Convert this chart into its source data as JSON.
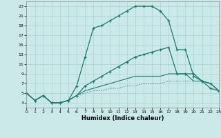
{
  "xlabel": "Humidex (Indice chaleur)",
  "ylabel": "",
  "bg_color": "#cce9ea",
  "grid_color": "#b0d4d6",
  "line_color": "#1a7a6e",
  "xlim": [
    0,
    23
  ],
  "ylim": [
    2,
    24
  ],
  "xticks": [
    0,
    1,
    2,
    3,
    4,
    5,
    6,
    7,
    8,
    9,
    10,
    11,
    12,
    13,
    14,
    15,
    16,
    17,
    18,
    19,
    20,
    21,
    22,
    23
  ],
  "yticks": [
    3,
    5,
    7,
    9,
    11,
    13,
    15,
    17,
    19,
    21,
    23
  ],
  "curve_max": {
    "x": [
      0,
      1,
      2,
      3,
      4,
      5,
      6,
      7,
      8,
      9,
      10,
      11,
      12,
      13,
      14,
      15,
      16,
      17,
      18,
      19,
      20,
      21,
      22,
      23
    ],
    "y": [
      5,
      3.5,
      4.5,
      3.0,
      3.0,
      3.5,
      6.5,
      12.5,
      18.5,
      19.0,
      20.0,
      21.0,
      22.0,
      23.0,
      23.0,
      23.0,
      22.0,
      20.0,
      14.0,
      14.0,
      8.5,
      7.5,
      6.0,
      5.5
    ],
    "linestyle": "-",
    "marker": true
  },
  "curve_upper": {
    "x": [
      0,
      1,
      2,
      3,
      4,
      5,
      6,
      7,
      8,
      9,
      10,
      11,
      12,
      13,
      14,
      15,
      16,
      17,
      18,
      19,
      20,
      21,
      22,
      23
    ],
    "y": [
      5.0,
      3.5,
      4.5,
      3.0,
      3.0,
      3.5,
      4.5,
      6.5,
      7.5,
      8.5,
      9.5,
      10.5,
      11.5,
      12.5,
      13.0,
      13.5,
      14.0,
      14.5,
      9.0,
      9.0,
      9.0,
      7.5,
      7.0,
      5.5
    ],
    "linestyle": "-",
    "marker": true
  },
  "curve_lower": {
    "x": [
      0,
      1,
      2,
      3,
      4,
      5,
      6,
      7,
      8,
      9,
      10,
      11,
      12,
      13,
      14,
      15,
      16,
      17,
      18,
      19,
      20,
      21,
      22,
      23
    ],
    "y": [
      5.0,
      3.5,
      4.5,
      3.0,
      3.0,
      3.5,
      4.5,
      5.5,
      6.0,
      6.5,
      7.0,
      7.5,
      8.0,
      8.5,
      8.5,
      8.5,
      8.5,
      9.0,
      9.0,
      9.0,
      7.5,
      7.5,
      7.0,
      5.5
    ],
    "linestyle": "-",
    "marker": false
  },
  "curve_min": {
    "x": [
      0,
      1,
      2,
      3,
      4,
      5,
      6,
      7,
      8,
      9,
      10,
      11,
      12,
      13,
      14,
      15,
      16,
      17,
      18,
      19,
      20,
      21,
      22,
      23
    ],
    "y": [
      5.0,
      3.5,
      4.5,
      3.0,
      3.0,
      3.5,
      4.5,
      5.0,
      5.5,
      5.5,
      6.0,
      6.0,
      6.5,
      6.5,
      7.0,
      7.0,
      7.0,
      7.5,
      7.5,
      7.5,
      7.5,
      7.5,
      7.0,
      5.5
    ],
    "linestyle": ":",
    "marker": false
  }
}
